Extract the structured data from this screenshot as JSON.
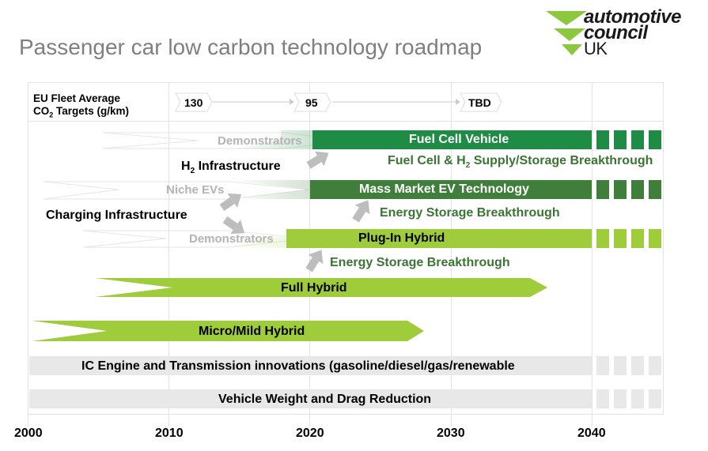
{
  "header": {
    "title": "Passenger car low carbon technology roadmap",
    "logo": {
      "line1": "automotive",
      "line2": "council",
      "line3": "UK",
      "color": "#8dc63f"
    }
  },
  "targets": {
    "label_line1": "EU Fleet Average",
    "label_line2": "CO",
    "label_sub": "2",
    "label_line2_rest": " Targets (g/km)",
    "values": [
      "130",
      "95",
      "TBD"
    ]
  },
  "bars": {
    "fuel_cell": "Fuel Cell Vehicle",
    "mass_market_ev": "Mass Market EV Technology",
    "plug_in_hybrid": "Plug-In Hybrid",
    "full_hybrid": "Full Hybrid",
    "micro_mild_hybrid": "Micro/Mild Hybrid",
    "ic_engine": "IC Engine and Transmission innovations (gasoline/diesel/gas/renewable",
    "weight_drag": "Vehicle Weight and Drag Reduction"
  },
  "labels": {
    "demonstrators_fc": "Demonstrators",
    "h2_infra_pre": "H",
    "h2_infra_sub": "2",
    "h2_infra_post": " Infrastructure",
    "fc_breakthrough_pre": "Fuel Cell & H",
    "fc_breakthrough_sub": "2",
    "fc_breakthrough_post": " Supply/Storage Breakthrough",
    "niche_evs": "Niche EVs",
    "charging_infra": "Charging Infrastructure",
    "energy_storage_1": "Energy Storage Breakthrough",
    "demonstrators_phev": "Demonstrators",
    "energy_storage_2": "Energy Storage Breakthrough"
  },
  "axis": {
    "years": [
      "2000",
      "2010",
      "2020",
      "2030",
      "2040"
    ]
  },
  "colors": {
    "dark_green": "#1e8c45",
    "medium_green": "#3f7f3b",
    "light_green": "#9fcc3b",
    "grey_bar": "#e8e8e8",
    "label_green": "#3a7533",
    "arrow_grey": "#bdbdbd",
    "title_grey": "#7f7f7f"
  }
}
